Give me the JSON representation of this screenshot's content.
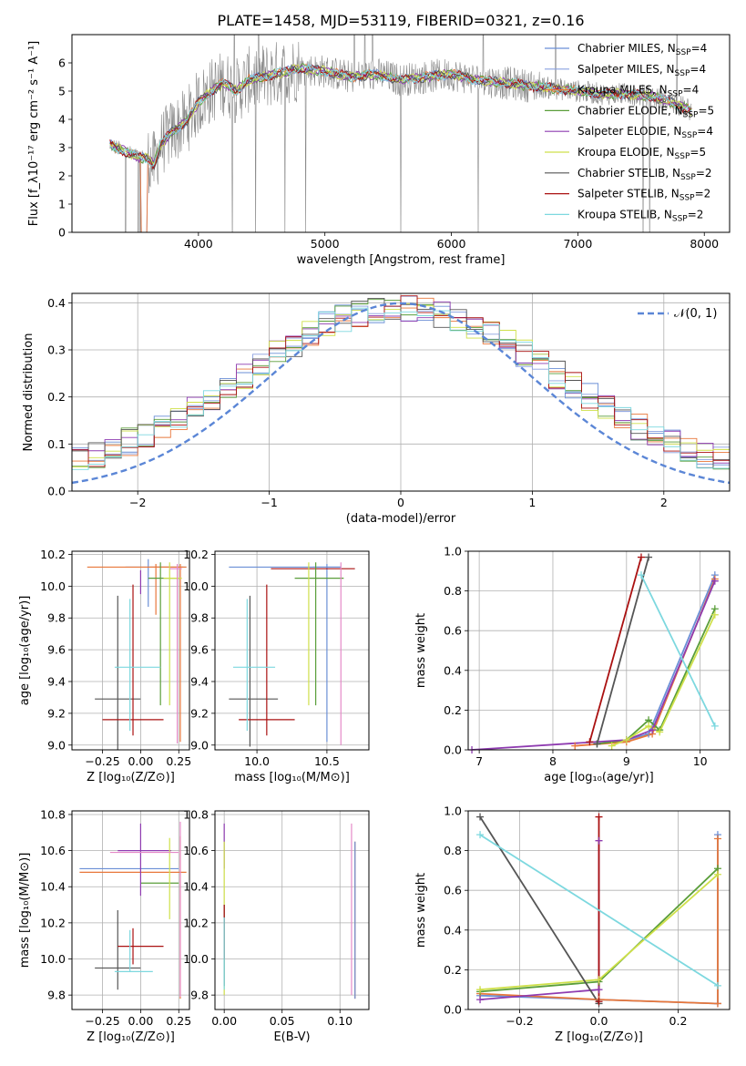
{
  "title": "PLATE=1458, MJD=53119, FIBERID=0321, z=0.16",
  "colors": {
    "chabrier_miles": "#6b8fd6",
    "salpeter_miles": "#8aa0e0",
    "kroupa_miles": "#e8773a",
    "chabrier_elodie": "#5a9e3a",
    "salpeter_elodie": "#8e3bb0",
    "kroupa_elodie": "#cfe04a",
    "chabrier_stelib": "#555555",
    "salpeter_stelib": "#aa1111",
    "kroupa_stelib": "#7dd8df",
    "data": "#888888",
    "pink": "#e58ac8",
    "gaussian": "#5b86d6"
  },
  "chart_data": [
    {
      "id": "spectrum",
      "type": "line",
      "xlabel": "wavelength [Angstrom, rest frame]",
      "ylabel": "Flux [f_λ10⁻¹⁷ erg cm⁻² s⁻¹ A⁻¹]",
      "xlim": [
        3000,
        8200
      ],
      "ylim": [
        0,
        7
      ],
      "xticks": [
        4000,
        5000,
        6000,
        7000,
        8000
      ],
      "yticks": [
        0,
        1,
        2,
        3,
        4,
        5,
        6
      ],
      "legend": [
        {
          "label": "Chabrier MILES, N",
          "sub": "SSP",
          "suffix": "=4",
          "color": "#6b8fd6"
        },
        {
          "label": "Salpeter MILES, N",
          "sub": "SSP",
          "suffix": "=4",
          "color": "#8aa0e0"
        },
        {
          "label": "Kroupa MILES, N",
          "sub": "SSP",
          "suffix": "=4",
          "color": "#e8773a"
        },
        {
          "label": "Chabrier ELODIE, N",
          "sub": "SSP",
          "suffix": "=5",
          "color": "#5a9e3a"
        },
        {
          "label": "Salpeter ELODIE, N",
          "sub": "SSP",
          "suffix": "=4",
          "color": "#8e3bb0"
        },
        {
          "label": "Kroupa ELODIE, N",
          "sub": "SSP",
          "suffix": "=5",
          "color": "#cfe04a"
        },
        {
          "label": "Chabrier STELIB, N",
          "sub": "SSP",
          "suffix": "=2",
          "color": "#555555"
        },
        {
          "label": "Salpeter STELIB, N",
          "sub": "SSP",
          "suffix": "=2",
          "color": "#aa1111"
        },
        {
          "label": "Kroupa STELIB, N",
          "sub": "SSP",
          "suffix": "=2",
          "color": "#7dd8df"
        }
      ],
      "model_continuum": {
        "x": [
          3300,
          3400,
          3500,
          3600,
          3650,
          3700,
          3800,
          3900,
          4000,
          4100,
          4200,
          4300,
          4400,
          4500,
          4600,
          4800,
          5000,
          5200,
          5400,
          5600,
          5800,
          6000,
          6200,
          6400,
          6600,
          6800,
          7000,
          7200,
          7400,
          7600,
          7800,
          7900
        ],
        "y": [
          3.1,
          2.9,
          2.7,
          2.6,
          2.4,
          3.1,
          3.6,
          3.9,
          4.6,
          5.0,
          5.3,
          5.0,
          5.4,
          5.5,
          5.6,
          5.8,
          5.7,
          5.5,
          5.6,
          5.4,
          5.5,
          5.6,
          5.4,
          5.3,
          5.2,
          5.1,
          5.0,
          4.9,
          4.9,
          4.8,
          4.5,
          4.3
        ]
      }
    },
    {
      "id": "residuals",
      "type": "histogram",
      "xlabel": "(data-model)/error",
      "ylabel": "Normed distribution",
      "xlim": [
        -2.5,
        2.5
      ],
      "ylim": [
        0,
        0.42
      ],
      "xticks": [
        -2,
        -1,
        0,
        1,
        2
      ],
      "yticks": [
        0.0,
        0.1,
        0.2,
        0.3,
        0.4
      ],
      "legend_label": "𝒩(0, 1)",
      "gaussian": {
        "mean": 0,
        "sigma": 1
      }
    },
    {
      "id": "age_vs_Z",
      "type": "errorbar",
      "xlabel": "Z [log₁₀(Z/Z⊙)]",
      "ylabel": "age  [log₁₀(age/yr)]",
      "xlim": [
        -0.45,
        0.32
      ],
      "ylim": [
        8.97,
        10.22
      ],
      "xticks": [
        -0.25,
        0.0,
        0.25
      ],
      "yticks": [
        9.0,
        9.2,
        9.4,
        9.6,
        9.8,
        10.0,
        10.2
      ],
      "points": [
        {
          "x": 0.05,
          "xerr": [
            0.15,
            0.25
          ],
          "y": 10.12,
          "yerr": [
            0.25,
            0.05
          ],
          "color": "#6b8fd6"
        },
        {
          "x": 0.1,
          "xerr": [
            0.45,
            0.18
          ],
          "y": 10.12,
          "yerr": [
            0.3,
            0.02
          ],
          "color": "#e8773a"
        },
        {
          "x": 0.26,
          "xerr": [
            0.2,
            0.04
          ],
          "y": 10.12,
          "yerr": [
            1.1,
            0.02
          ],
          "color": "#e8773a"
        },
        {
          "x": 0.13,
          "xerr": [
            0.08,
            0.13
          ],
          "y": 10.05,
          "yerr": [
            0.8,
            0.1
          ],
          "color": "#5a9e3a"
        },
        {
          "x": 0.0,
          "xerr": [
            0.0,
            0.0
          ],
          "y": 10.0,
          "yerr": [
            0.05,
            0.1
          ],
          "color": "#8e3bb0"
        },
        {
          "x": 0.19,
          "xerr": [
            0.04,
            0.08
          ],
          "y": 10.05,
          "yerr": [
            0.8,
            0.1
          ],
          "color": "#cfe04a"
        },
        {
          "x": 0.24,
          "xerr": [
            0.05,
            0.03
          ],
          "y": 10.11,
          "yerr": [
            1.1,
            0.03
          ],
          "color": "#e58ac8"
        },
        {
          "x": -0.15,
          "xerr": [
            0.15,
            0.15
          ],
          "y": 9.29,
          "yerr": [
            0.35,
            0.65
          ],
          "color": "#555555"
        },
        {
          "x": -0.05,
          "xerr": [
            0.2,
            0.2
          ],
          "y": 9.16,
          "yerr": [
            0.1,
            0.85
          ],
          "color": "#aa1111"
        },
        {
          "x": -0.07,
          "xerr": [
            0.1,
            0.2
          ],
          "y": 9.49,
          "yerr": [
            0.4,
            0.43
          ],
          "color": "#7dd8df"
        }
      ]
    },
    {
      "id": "age_vs_mass",
      "type": "errorbar",
      "xlabel": "mass [log₁₀(M/M⊙)]",
      "xlim": [
        9.7,
        10.8
      ],
      "ylim": [
        8.97,
        10.22
      ],
      "xticks": [
        10.0,
        10.5
      ],
      "yticks": [
        9.0,
        9.2,
        9.4,
        9.6,
        9.8,
        10.0,
        10.2
      ],
      "points": [
        {
          "x": 10.2,
          "xerr": [
            0.4,
            0.4
          ],
          "y": 10.12,
          "yerr": [
            0.0,
            0.0
          ],
          "color": "#6b8fd6"
        },
        {
          "x": 10.5,
          "xerr": [
            0.1,
            0.1
          ],
          "y": 10.12,
          "yerr": [
            1.1,
            0.02
          ],
          "color": "#6b8fd6"
        },
        {
          "x": 10.4,
          "xerr": [
            0.3,
            0.3
          ],
          "y": 10.11,
          "yerr": [
            0.0,
            0.0
          ],
          "color": "#aa1111"
        },
        {
          "x": 10.42,
          "xerr": [
            0.15,
            0.2
          ],
          "y": 10.05,
          "yerr": [
            0.8,
            0.1
          ],
          "color": "#5a9e3a"
        },
        {
          "x": 10.6,
          "xerr": [
            0.0,
            0.0
          ],
          "y": 10.1,
          "yerr": [
            1.1,
            0.05
          ],
          "color": "#e58ac8"
        },
        {
          "x": 10.37,
          "xerr": [
            0.0,
            0.0
          ],
          "y": 10.05,
          "yerr": [
            0.8,
            0.1
          ],
          "color": "#cfe04a"
        },
        {
          "x": 9.95,
          "xerr": [
            0.15,
            0.2
          ],
          "y": 9.29,
          "yerr": [
            0.3,
            0.65
          ],
          "color": "#555555"
        },
        {
          "x": 10.07,
          "xerr": [
            0.2,
            0.2
          ],
          "y": 9.16,
          "yerr": [
            0.1,
            0.85
          ],
          "color": "#aa1111"
        },
        {
          "x": 9.93,
          "xerr": [
            0.1,
            0.2
          ],
          "y": 9.49,
          "yerr": [
            0.4,
            0.43
          ],
          "color": "#7dd8df"
        }
      ]
    },
    {
      "id": "weight_vs_age",
      "type": "line",
      "xlabel": "age  [log₁₀(age/yr)]",
      "ylabel": "mass weight",
      "xlim": [
        6.85,
        10.4
      ],
      "ylim": [
        0,
        1.0
      ],
      "xticks": [
        7,
        8,
        9,
        10
      ],
      "yticks": [
        0.0,
        0.2,
        0.4,
        0.6,
        0.8,
        1.0
      ],
      "series": [
        {
          "color": "#6b8fd6",
          "x": [
            8.6,
            9.0,
            9.3,
            10.2
          ],
          "y": [
            0.03,
            0.05,
            0.08,
            0.88
          ]
        },
        {
          "color": "#e8773a",
          "x": [
            8.3,
            9.0,
            9.35,
            10.2
          ],
          "y": [
            0.02,
            0.04,
            0.08,
            0.86
          ]
        },
        {
          "color": "#5a9e3a",
          "x": [
            8.6,
            9.0,
            9.3,
            9.45,
            10.2
          ],
          "y": [
            0.03,
            0.05,
            0.15,
            0.1,
            0.71
          ]
        },
        {
          "color": "#8e3bb0",
          "x": [
            6.9,
            9.0,
            9.35,
            10.2
          ],
          "y": [
            0.0,
            0.05,
            0.1,
            0.85
          ]
        },
        {
          "color": "#cfe04a",
          "x": [
            8.8,
            9.0,
            9.3,
            9.45,
            10.2
          ],
          "y": [
            0.02,
            0.05,
            0.12,
            0.09,
            0.68
          ]
        },
        {
          "color": "#555555",
          "x": [
            8.6,
            9.3
          ],
          "y": [
            0.03,
            0.97
          ]
        },
        {
          "color": "#aa1111",
          "x": [
            8.5,
            9.2
          ],
          "y": [
            0.04,
            0.97
          ]
        },
        {
          "color": "#7dd8df",
          "x": [
            9.2,
            10.2
          ],
          "y": [
            0.88,
            0.12
          ]
        }
      ]
    },
    {
      "id": "mass_vs_Z",
      "type": "errorbar",
      "xlabel": "Z [log₁₀(Z/Z⊙)]",
      "ylabel": "mass [log₁₀(M/M⊙)]",
      "xlim": [
        -0.45,
        0.32
      ],
      "ylim": [
        9.72,
        10.82
      ],
      "xticks": [
        -0.25,
        0.0,
        0.25
      ],
      "yticks": [
        9.8,
        10.0,
        10.2,
        10.4,
        10.6,
        10.8
      ],
      "points": [
        {
          "x": -0.05,
          "xerr": [
            0.35,
            0.3
          ],
          "y": 10.5,
          "yerr": [
            0.0,
            0.0
          ],
          "color": "#6b8fd6"
        },
        {
          "x": 0.0,
          "xerr": [
            0.4,
            0.3
          ],
          "y": 10.48,
          "yerr": [
            0.0,
            0.0
          ],
          "color": "#e8773a"
        },
        {
          "x": 0.26,
          "xerr": [
            0.0,
            0.0
          ],
          "y": 10.48,
          "yerr": [
            0.7,
            0.2
          ],
          "color": "#e8773a"
        },
        {
          "x": 0.1,
          "xerr": [
            0.1,
            0.15
          ],
          "y": 10.42,
          "yerr": [
            0.0,
            0.0
          ],
          "color": "#5a9e3a"
        },
        {
          "x": 0.0,
          "xerr": [
            0.15,
            0.2
          ],
          "y": 10.6,
          "yerr": [
            0.25,
            0.15
          ],
          "color": "#8e3bb0"
        },
        {
          "x": 0.19,
          "xerr": [
            0.0,
            0.0
          ],
          "y": 10.42,
          "yerr": [
            0.2,
            0.25
          ],
          "color": "#cfe04a"
        },
        {
          "x": 0.0,
          "xerr": [
            0.2,
            0.25
          ],
          "y": 10.59,
          "yerr": [
            0.0,
            0.0
          ],
          "color": "#e58ac8"
        },
        {
          "x": 0.26,
          "xerr": [
            0.0,
            0.0
          ],
          "y": 10.59,
          "yerr": [
            0.8,
            0.17
          ],
          "color": "#e58ac8"
        },
        {
          "x": -0.15,
          "xerr": [
            0.15,
            0.15
          ],
          "y": 9.95,
          "yerr": [
            0.12,
            0.32
          ],
          "color": "#555555"
        },
        {
          "x": -0.05,
          "xerr": [
            0.1,
            0.2
          ],
          "y": 10.07,
          "yerr": [
            0.1,
            0.1
          ],
          "color": "#aa1111"
        },
        {
          "x": -0.07,
          "xerr": [
            0.1,
            0.15
          ],
          "y": 9.93,
          "yerr": [
            0.0,
            0.23
          ],
          "color": "#7dd8df"
        }
      ]
    },
    {
      "id": "mass_vs_ebv",
      "type": "errorbar",
      "xlabel": "E(B-V)",
      "xlim": [
        -0.008,
        0.125
      ],
      "ylim": [
        9.72,
        10.82
      ],
      "xticks": [
        0.0,
        0.05,
        0.1
      ],
      "yticks": [
        9.8,
        10.0,
        10.2,
        10.4,
        10.6,
        10.8
      ],
      "points": [
        {
          "x": 0.0,
          "xerr": [
            0.0,
            0.0
          ],
          "y": 10.6,
          "yerr": [
            0.1,
            0.15
          ],
          "color": "#8e3bb0"
        },
        {
          "x": 0.0,
          "xerr": [
            0.0,
            0.0
          ],
          "y": 10.3,
          "yerr": [
            0.5,
            0.35
          ],
          "color": "#cfe04a"
        },
        {
          "x": 0.0,
          "xerr": [
            0.0,
            0.0
          ],
          "y": 10.05,
          "yerr": [
            0.2,
            0.25
          ],
          "color": "#555555"
        },
        {
          "x": 0.0,
          "xerr": [
            0.0,
            0.0
          ],
          "y": 10.05,
          "yerr": [
            0.05,
            0.25
          ],
          "color": "#aa1111"
        },
        {
          "x": 0.0,
          "xerr": [
            0.0,
            0.0
          ],
          "y": 9.93,
          "yerr": [
            0.1,
            0.3
          ],
          "color": "#7dd8df"
        },
        {
          "x": 0.11,
          "xerr": [
            0.0,
            0.0
          ],
          "y": 10.4,
          "yerr": [
            0.6,
            0.35
          ],
          "color": "#e58ac8"
        },
        {
          "x": 0.113,
          "xerr": [
            0.0,
            0.0
          ],
          "y": 10.2,
          "yerr": [
            0.42,
            0.45
          ],
          "color": "#e8773a"
        },
        {
          "x": 0.113,
          "xerr": [
            0.0,
            0.0
          ],
          "y": 10.2,
          "yerr": [
            0.42,
            0.45
          ],
          "color": "#6b8fd6"
        }
      ]
    },
    {
      "id": "weight_vs_Z",
      "type": "line",
      "xlabel": "Z [log₁₀(Z/Z⊙)]",
      "ylabel": "mass weight",
      "xlim": [
        -0.33,
        0.33
      ],
      "ylim": [
        0,
        1.0
      ],
      "xticks": [
        -0.2,
        0.0,
        0.2
      ],
      "yticks": [
        0.0,
        0.2,
        0.4,
        0.6,
        0.8,
        1.0
      ],
      "series": [
        {
          "color": "#6b8fd6",
          "x": [
            -0.3,
            0.0,
            0.3,
            0.3
          ],
          "y": [
            0.07,
            0.05,
            0.03,
            0.88
          ]
        },
        {
          "color": "#e8773a",
          "x": [
            -0.3,
            0.0,
            0.3,
            0.3
          ],
          "y": [
            0.08,
            0.05,
            0.03,
            0.86
          ]
        },
        {
          "color": "#5a9e3a",
          "x": [
            -0.3,
            0.0,
            0.3
          ],
          "y": [
            0.09,
            0.14,
            0.71
          ]
        },
        {
          "color": "#8e3bb0",
          "x": [
            -0.3,
            0.0,
            0.0
          ],
          "y": [
            0.05,
            0.1,
            0.85
          ]
        },
        {
          "color": "#cfe04a",
          "x": [
            -0.3,
            0.0,
            0.3
          ],
          "y": [
            0.1,
            0.15,
            0.68
          ]
        },
        {
          "color": "#555555",
          "x": [
            -0.3,
            0.0
          ],
          "y": [
            0.97,
            0.03
          ]
        },
        {
          "color": "#aa1111",
          "x": [
            0.0,
            0.0
          ],
          "y": [
            0.04,
            0.97
          ]
        },
        {
          "color": "#7dd8df",
          "x": [
            -0.3,
            0.3
          ],
          "y": [
            0.88,
            0.12
          ]
        }
      ]
    }
  ]
}
